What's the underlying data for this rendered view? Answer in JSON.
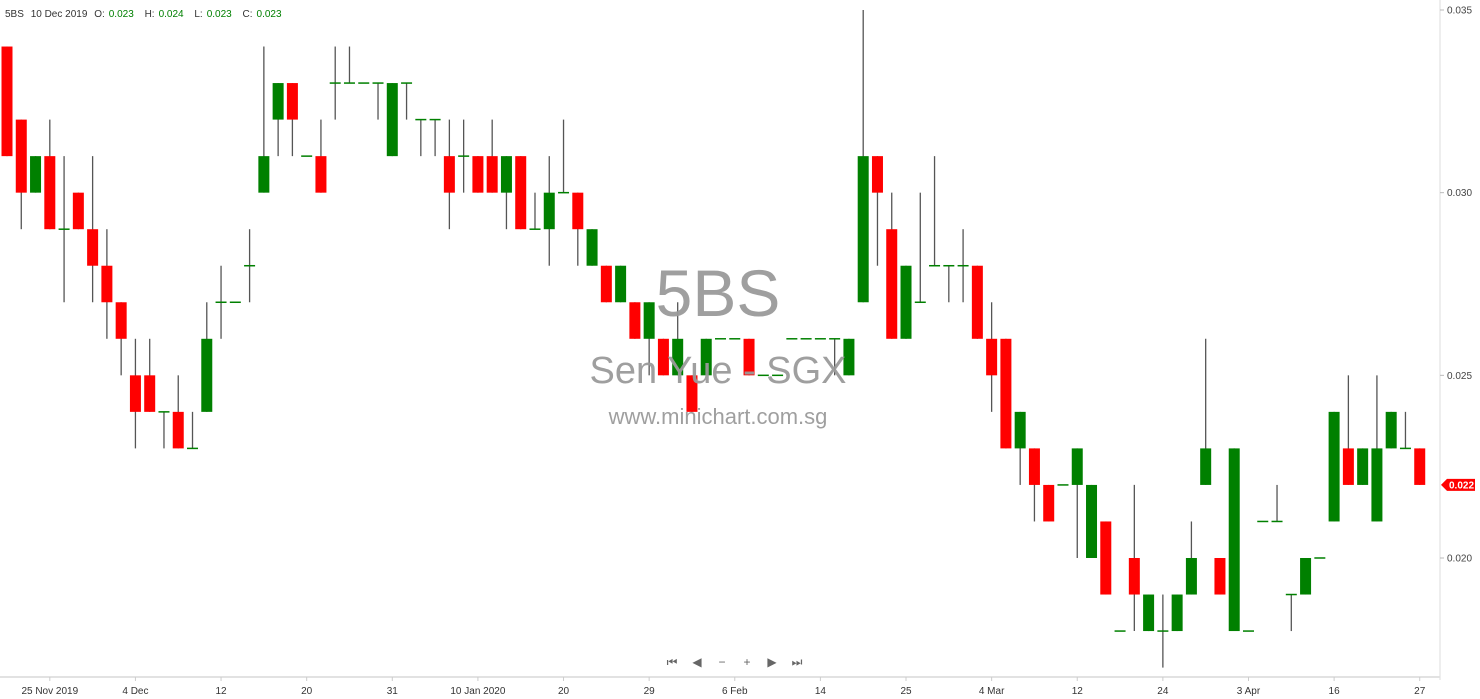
{
  "header": {
    "symbol": "5BS",
    "date": "10 Dec 2019",
    "open_label": "O:",
    "open": "0.023",
    "high_label": "H:",
    "high": "0.024",
    "low_label": "L:",
    "low": "0.023",
    "close_label": "C:",
    "close": "0.023"
  },
  "watermark": {
    "code": "5BS",
    "name": "Sen Yue - SGX",
    "site": "www.minichart.com.sg"
  },
  "nav": {
    "first": "⏮",
    "prev": "◀",
    "zoom_out": "−",
    "zoom_in": "+",
    "next": "▶",
    "last": "⏭"
  },
  "colors": {
    "up": "#008000",
    "down": "#ff0000",
    "wick": "#555555",
    "last_price": "#ff0000"
  },
  "chart_data": {
    "type": "candlestick",
    "ylim": [
      0.017,
      0.035
    ],
    "y_ticks": [
      "0.035",
      "0.030",
      "0.025",
      "0.020"
    ],
    "last_price": "0.022",
    "grid": false,
    "x_ticks": [
      {
        "label": "25 Nov 2019",
        "index": 3
      },
      {
        "label": "4 Dec",
        "index": 9
      },
      {
        "label": "12",
        "index": 15
      },
      {
        "label": "20",
        "index": 21
      },
      {
        "label": "31",
        "index": 27
      },
      {
        "label": "10 Jan 2020",
        "index": 33
      },
      {
        "label": "20",
        "index": 39
      },
      {
        "label": "29",
        "index": 45
      },
      {
        "label": "6 Feb",
        "index": 51
      },
      {
        "label": "14",
        "index": 57
      },
      {
        "label": "25",
        "index": 63
      },
      {
        "label": "4 Mar",
        "index": 69
      },
      {
        "label": "12",
        "index": 75
      },
      {
        "label": "24",
        "index": 81
      },
      {
        "label": "3 Apr",
        "index": 87
      },
      {
        "label": "16",
        "index": 93
      },
      {
        "label": "27",
        "index": 99
      }
    ],
    "ohlc": [
      [
        0.034,
        0.034,
        0.031,
        0.031
      ],
      [
        0.032,
        0.032,
        0.029,
        0.03
      ],
      [
        0.03,
        0.031,
        0.03,
        0.031
      ],
      [
        0.031,
        0.032,
        0.029,
        0.029
      ],
      [
        0.029,
        0.031,
        0.027,
        0.029
      ],
      [
        0.03,
        0.03,
        0.029,
        0.029
      ],
      [
        0.029,
        0.031,
        0.027,
        0.028
      ],
      [
        0.028,
        0.029,
        0.026,
        0.027
      ],
      [
        0.027,
        0.027,
        0.025,
        0.026
      ],
      [
        0.025,
        0.026,
        0.023,
        0.024
      ],
      [
        0.025,
        0.026,
        0.024,
        0.024
      ],
      [
        0.024,
        0.024,
        0.023,
        0.024
      ],
      [
        0.024,
        0.025,
        0.023,
        0.023
      ],
      [
        0.023,
        0.024,
        0.023,
        0.023
      ],
      [
        0.024,
        0.027,
        0.024,
        0.026
      ],
      [
        0.027,
        0.028,
        0.026,
        0.027
      ],
      [
        0.027,
        0.027,
        0.027,
        0.027
      ],
      [
        0.028,
        0.029,
        0.027,
        0.028
      ],
      [
        0.03,
        0.034,
        0.03,
        0.031
      ],
      [
        0.032,
        0.033,
        0.031,
        0.033
      ],
      [
        0.033,
        0.033,
        0.031,
        0.032
      ],
      [
        0.031,
        0.031,
        0.031,
        0.031
      ],
      [
        0.031,
        0.032,
        0.03,
        0.03
      ],
      [
        0.033,
        0.034,
        0.032,
        0.033
      ],
      [
        0.033,
        0.034,
        0.033,
        0.033
      ],
      [
        0.033,
        0.033,
        0.033,
        0.033
      ],
      [
        0.033,
        0.033,
        0.032,
        0.033
      ],
      [
        0.031,
        0.033,
        0.031,
        0.033
      ],
      [
        0.033,
        0.033,
        0.032,
        0.033
      ],
      [
        0.032,
        0.032,
        0.031,
        0.032
      ],
      [
        0.032,
        0.032,
        0.031,
        0.032
      ],
      [
        0.031,
        0.032,
        0.029,
        0.03
      ],
      [
        0.031,
        0.032,
        0.03,
        0.031
      ],
      [
        0.031,
        0.031,
        0.03,
        0.03
      ],
      [
        0.031,
        0.032,
        0.03,
        0.03
      ],
      [
        0.03,
        0.031,
        0.029,
        0.031
      ],
      [
        0.031,
        0.031,
        0.029,
        0.029
      ],
      [
        0.029,
        0.03,
        0.029,
        0.029
      ],
      [
        0.029,
        0.031,
        0.028,
        0.03
      ],
      [
        0.03,
        0.032,
        0.03,
        0.03
      ],
      [
        0.03,
        0.03,
        0.028,
        0.029
      ],
      [
        0.028,
        0.029,
        0.028,
        0.029
      ],
      [
        0.028,
        0.028,
        0.027,
        0.027
      ],
      [
        0.027,
        0.028,
        0.027,
        0.028
      ],
      [
        0.027,
        0.027,
        0.026,
        0.026
      ],
      [
        0.026,
        0.027,
        0.025,
        0.027
      ],
      [
        0.026,
        0.026,
        0.025,
        0.025
      ],
      [
        0.025,
        0.027,
        0.025,
        0.026
      ],
      [
        0.025,
        0.025,
        0.024,
        0.024
      ],
      [
        0.025,
        0.026,
        0.025,
        0.026
      ],
      [
        0.026,
        0.026,
        0.026,
        0.026
      ],
      [
        0.026,
        0.026,
        0.026,
        0.026
      ],
      [
        0.026,
        0.026,
        0.025,
        0.025
      ],
      [
        0.025,
        0.025,
        0.025,
        0.025
      ],
      [
        0.025,
        0.025,
        0.025,
        0.025
      ],
      [
        0.026,
        0.026,
        0.026,
        0.026
      ],
      [
        0.026,
        0.026,
        0.026,
        0.026
      ],
      [
        0.026,
        0.026,
        0.026,
        0.026
      ],
      [
        0.026,
        0.026,
        0.025,
        0.026
      ],
      [
        0.025,
        0.026,
        0.025,
        0.026
      ],
      [
        0.027,
        0.035,
        0.027,
        0.031
      ],
      [
        0.031,
        0.031,
        0.028,
        0.03
      ],
      [
        0.029,
        0.03,
        0.026,
        0.026
      ],
      [
        0.026,
        0.028,
        0.026,
        0.028
      ],
      [
        0.027,
        0.03,
        0.027,
        0.027
      ],
      [
        0.028,
        0.031,
        0.028,
        0.028
      ],
      [
        0.028,
        0.028,
        0.027,
        0.028
      ],
      [
        0.028,
        0.029,
        0.027,
        0.028
      ],
      [
        0.028,
        0.028,
        0.026,
        0.026
      ],
      [
        0.026,
        0.027,
        0.024,
        0.025
      ],
      [
        0.026,
        0.026,
        0.023,
        0.023
      ],
      [
        0.023,
        0.024,
        0.022,
        0.024
      ],
      [
        0.023,
        0.023,
        0.021,
        0.022
      ],
      [
        0.022,
        0.022,
        0.021,
        0.021
      ],
      [
        0.022,
        0.022,
        0.022,
        0.022
      ],
      [
        0.022,
        0.023,
        0.02,
        0.023
      ],
      [
        0.02,
        0.022,
        0.02,
        0.022
      ],
      [
        0.021,
        0.021,
        0.019,
        0.019
      ],
      [
        0.018,
        0.018,
        0.018,
        0.018
      ],
      [
        0.02,
        0.022,
        0.018,
        0.019
      ],
      [
        0.018,
        0.019,
        0.018,
        0.019
      ],
      [
        0.018,
        0.019,
        0.017,
        0.018
      ],
      [
        0.018,
        0.019,
        0.018,
        0.019
      ],
      [
        0.019,
        0.021,
        0.019,
        0.02
      ],
      [
        0.022,
        0.026,
        0.022,
        0.023
      ],
      [
        0.02,
        0.02,
        0.019,
        0.019
      ],
      [
        0.018,
        0.023,
        0.018,
        0.023
      ],
      [
        0.018,
        0.018,
        0.018,
        0.018
      ],
      [
        0.021,
        0.021,
        0.021,
        0.021
      ],
      [
        0.021,
        0.022,
        0.021,
        0.021
      ],
      [
        0.019,
        0.019,
        0.018,
        0.019
      ],
      [
        0.019,
        0.02,
        0.019,
        0.02
      ],
      [
        0.02,
        0.02,
        0.02,
        0.02
      ],
      [
        0.021,
        0.024,
        0.021,
        0.024
      ],
      [
        0.023,
        0.025,
        0.022,
        0.022
      ],
      [
        0.022,
        0.023,
        0.022,
        0.023
      ],
      [
        0.021,
        0.025,
        0.021,
        0.023
      ],
      [
        0.023,
        0.024,
        0.023,
        0.024
      ],
      [
        0.023,
        0.024,
        0.023,
        0.023
      ],
      [
        0.023,
        0.023,
        0.022,
        0.022
      ]
    ]
  }
}
